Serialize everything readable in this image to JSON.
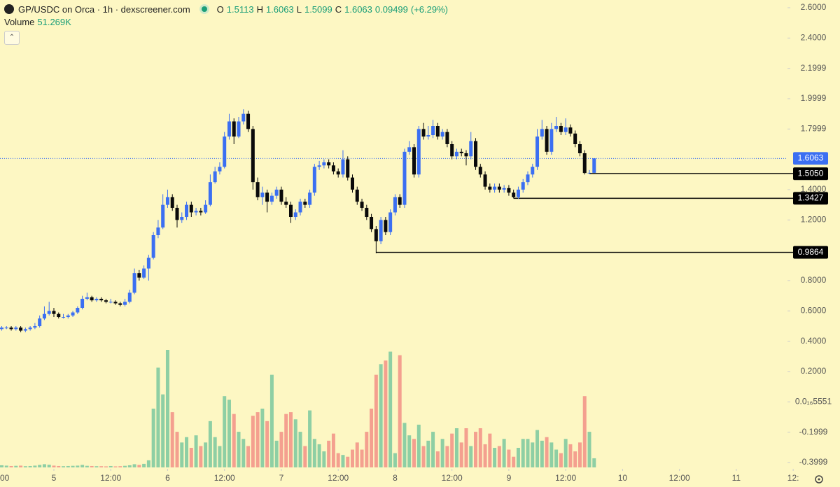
{
  "chart_data": {
    "type": "candlestick",
    "title": "GP/USDC on Orca · 1h · dexscreener.com",
    "ohlc_letters": [
      "O",
      "H",
      "L",
      "C"
    ],
    "change": 0.09499,
    "change_pct": 6.29,
    "change_pct_label": "(+6.29%)",
    "volume_label": "Volume",
    "volume_value_label": "51.269K",
    "up_color": "#3b6ff2",
    "down_color": "#0a0a0a",
    "volume_up_color": "#8ecfa4",
    "volume_down_color": "#f4a08f",
    "ylim": [
      -0.4414,
      2.6508
    ],
    "yticks": [
      {
        "value": 2.6,
        "label": "2.6000"
      },
      {
        "value": 2.4,
        "label": "2.4000"
      },
      2.1999,
      1.9999,
      1.7999,
      {
        "value": 1.4,
        "label": "1.4000"
      },
      {
        "value": 1.2,
        "label": "1.2000"
      },
      {
        "value": 0.8,
        "label": "0.8000"
      },
      {
        "value": 0.6,
        "label": "0.6000"
      },
      {
        "value": 0.4,
        "label": "0.4000"
      },
      {
        "value": 0.2,
        "label": "0.2000"
      },
      {
        "value": 5.551e-17,
        "label": "0.0₁₆5551"
      },
      -0.1999,
      -0.3999
    ],
    "xlim": [
      -0.37,
      165.8
    ],
    "xticks": [
      {
        "value": -1,
        "label": "00"
      },
      {
        "value": 11,
        "label": "5"
      },
      {
        "value": 23,
        "label": "12:00"
      },
      {
        "value": 35,
        "label": "6"
      },
      {
        "value": 47,
        "label": "12:00"
      },
      {
        "value": 59,
        "label": "7"
      },
      {
        "value": 71,
        "label": "12:00"
      },
      {
        "value": 83,
        "label": "8"
      },
      {
        "value": 95,
        "label": "12:00"
      },
      {
        "value": 107,
        "label": "9"
      },
      {
        "value": 119,
        "label": "12:00"
      },
      {
        "value": 131,
        "label": "10"
      },
      {
        "value": 143,
        "label": "12:00"
      },
      {
        "value": 155,
        "label": "11"
      },
      {
        "value": 167,
        "label": "12:"
      }
    ],
    "levels": [
      {
        "value": 1.505,
        "label": "1.5050"
      },
      {
        "value": 1.3427,
        "label": "1.3427"
      },
      {
        "value": 0.9864,
        "label": "0.9864"
      }
    ],
    "candles": [
      [
        0.48,
        0.5,
        0.47,
        0.49
      ],
      [
        0.49,
        0.5,
        0.48,
        0.49
      ],
      [
        0.49,
        0.5,
        0.47,
        0.48
      ],
      [
        0.48,
        0.5,
        0.47,
        0.49
      ],
      [
        0.49,
        0.5,
        0.46,
        0.47
      ],
      [
        0.47,
        0.49,
        0.46,
        0.48
      ],
      [
        0.48,
        0.5,
        0.47,
        0.49
      ],
      [
        0.49,
        0.52,
        0.48,
        0.5
      ],
      [
        0.5,
        0.57,
        0.49,
        0.55
      ],
      [
        0.55,
        0.63,
        0.54,
        0.58
      ],
      [
        0.58,
        0.66,
        0.57,
        0.6
      ],
      [
        0.6,
        0.62,
        0.56,
        0.58
      ],
      [
        0.58,
        0.59,
        0.55,
        0.56
      ],
      [
        0.56,
        0.58,
        0.55,
        0.56
      ],
      [
        0.56,
        0.58,
        0.55,
        0.57
      ],
      [
        0.57,
        0.6,
        0.56,
        0.59
      ],
      [
        0.59,
        0.63,
        0.58,
        0.62
      ],
      [
        0.62,
        0.7,
        0.61,
        0.68
      ],
      [
        0.68,
        0.72,
        0.67,
        0.69
      ],
      [
        0.69,
        0.7,
        0.66,
        0.67
      ],
      [
        0.67,
        0.69,
        0.66,
        0.68
      ],
      [
        0.68,
        0.69,
        0.66,
        0.67
      ],
      [
        0.67,
        0.68,
        0.65,
        0.66
      ],
      [
        0.66,
        0.68,
        0.65,
        0.66
      ],
      [
        0.66,
        0.67,
        0.64,
        0.65
      ],
      [
        0.65,
        0.66,
        0.63,
        0.64
      ],
      [
        0.64,
        0.68,
        0.63,
        0.66
      ],
      [
        0.66,
        0.74,
        0.65,
        0.72
      ],
      [
        0.72,
        0.88,
        0.71,
        0.85
      ],
      [
        0.85,
        0.87,
        0.8,
        0.82
      ],
      [
        0.82,
        0.9,
        0.81,
        0.88
      ],
      [
        0.88,
        0.97,
        0.8,
        0.95
      ],
      [
        0.95,
        1.12,
        0.94,
        1.1
      ],
      [
        1.1,
        1.2,
        1.08,
        1.15
      ],
      [
        1.15,
        1.37,
        1.14,
        1.3
      ],
      [
        1.3,
        1.4,
        1.28,
        1.35
      ],
      [
        1.35,
        1.37,
        1.26,
        1.28
      ],
      [
        1.28,
        1.3,
        1.15,
        1.2
      ],
      [
        1.2,
        1.25,
        1.18,
        1.22
      ],
      [
        1.22,
        1.32,
        1.2,
        1.3
      ],
      [
        1.3,
        1.32,
        1.22,
        1.25
      ],
      [
        1.25,
        1.28,
        1.23,
        1.26
      ],
      [
        1.26,
        1.28,
        1.23,
        1.25
      ],
      [
        1.25,
        1.33,
        1.24,
        1.3
      ],
      [
        1.3,
        1.5,
        1.29,
        1.45
      ],
      [
        1.45,
        1.55,
        1.44,
        1.52
      ],
      [
        1.52,
        1.58,
        1.5,
        1.55
      ],
      [
        1.55,
        1.78,
        1.54,
        1.75
      ],
      [
        1.75,
        1.9,
        1.73,
        1.85
      ],
      [
        1.85,
        1.87,
        1.7,
        1.75
      ],
      [
        1.75,
        1.88,
        1.74,
        1.85
      ],
      [
        1.85,
        1.93,
        1.83,
        1.9
      ],
      [
        1.9,
        1.92,
        1.78,
        1.8
      ],
      [
        1.8,
        1.82,
        1.4,
        1.45
      ],
      [
        1.45,
        1.48,
        1.33,
        1.35
      ],
      [
        1.35,
        1.42,
        1.3,
        1.38
      ],
      [
        1.38,
        1.4,
        1.25,
        1.32
      ],
      [
        1.32,
        1.38,
        1.3,
        1.36
      ],
      [
        1.36,
        1.42,
        1.34,
        1.4
      ],
      [
        1.4,
        1.42,
        1.3,
        1.32
      ],
      [
        1.32,
        1.35,
        1.28,
        1.3
      ],
      [
        1.3,
        1.32,
        1.18,
        1.22
      ],
      [
        1.22,
        1.27,
        1.2,
        1.25
      ],
      [
        1.25,
        1.34,
        1.23,
        1.32
      ],
      [
        1.32,
        1.34,
        1.28,
        1.3
      ],
      [
        1.3,
        1.4,
        1.28,
        1.38
      ],
      [
        1.38,
        1.57,
        1.36,
        1.55
      ],
      [
        1.55,
        1.59,
        1.53,
        1.56
      ],
      [
        1.56,
        1.6,
        1.54,
        1.58
      ],
      [
        1.58,
        1.6,
        1.54,
        1.56
      ],
      [
        1.56,
        1.58,
        1.5,
        1.52
      ],
      [
        1.52,
        1.54,
        1.48,
        1.5
      ],
      [
        1.5,
        1.66,
        1.48,
        1.6
      ],
      [
        1.6,
        1.62,
        1.46,
        1.48
      ],
      [
        1.48,
        1.5,
        1.38,
        1.4
      ],
      [
        1.4,
        1.42,
        1.3,
        1.32
      ],
      [
        1.32,
        1.34,
        1.26,
        1.28
      ],
      [
        1.28,
        1.3,
        1.2,
        1.22
      ],
      [
        1.22,
        1.24,
        1.12,
        1.14
      ],
      [
        1.14,
        1.16,
        0.98,
        1.06
      ],
      [
        1.06,
        1.22,
        1.04,
        1.2
      ],
      [
        1.2,
        1.22,
        1.1,
        1.12
      ],
      [
        1.12,
        1.27,
        1.1,
        1.25
      ],
      [
        1.25,
        1.37,
        1.23,
        1.35
      ],
      [
        1.35,
        1.37,
        1.28,
        1.3
      ],
      [
        1.3,
        1.67,
        1.28,
        1.65
      ],
      [
        1.65,
        1.72,
        1.63,
        1.68
      ],
      [
        1.68,
        1.7,
        1.48,
        1.5
      ],
      [
        1.5,
        1.82,
        1.48,
        1.8
      ],
      [
        1.8,
        1.84,
        1.73,
        1.75
      ],
      [
        1.75,
        1.82,
        1.73,
        1.76
      ],
      [
        1.76,
        1.86,
        1.74,
        1.82
      ],
      [
        1.82,
        1.84,
        1.73,
        1.75
      ],
      [
        1.75,
        1.8,
        1.73,
        1.78
      ],
      [
        1.78,
        1.8,
        1.68,
        1.7
      ],
      [
        1.7,
        1.72,
        1.6,
        1.62
      ],
      [
        1.62,
        1.67,
        1.6,
        1.65
      ],
      [
        1.65,
        1.67,
        1.62,
        1.64
      ],
      [
        1.64,
        1.66,
        1.56,
        1.62
      ],
      [
        1.62,
        1.78,
        1.6,
        1.72
      ],
      [
        1.72,
        1.74,
        1.53,
        1.55
      ],
      [
        1.55,
        1.57,
        1.48,
        1.5
      ],
      [
        1.5,
        1.52,
        1.4,
        1.42
      ],
      [
        1.42,
        1.44,
        1.38,
        1.4
      ],
      [
        1.4,
        1.44,
        1.38,
        1.42
      ],
      [
        1.42,
        1.44,
        1.38,
        1.4
      ],
      [
        1.4,
        1.43,
        1.38,
        1.41
      ],
      [
        1.41,
        1.43,
        1.36,
        1.38
      ],
      [
        1.38,
        1.4,
        1.3427,
        1.35
      ],
      [
        1.35,
        1.42,
        1.34,
        1.4
      ],
      [
        1.4,
        1.47,
        1.38,
        1.45
      ],
      [
        1.45,
        1.52,
        1.43,
        1.5
      ],
      [
        1.5,
        1.57,
        1.48,
        1.55
      ],
      [
        1.55,
        1.8,
        1.53,
        1.75
      ],
      [
        1.75,
        1.86,
        1.73,
        1.8
      ],
      [
        1.8,
        1.82,
        1.63,
        1.65
      ],
      [
        1.65,
        1.84,
        1.63,
        1.8
      ],
      [
        1.8,
        1.88,
        1.78,
        1.82
      ],
      [
        1.82,
        1.84,
        1.76,
        1.78
      ],
      [
        1.78,
        1.87,
        1.76,
        1.81
      ],
      [
        1.81,
        1.83,
        1.75,
        1.77
      ],
      [
        1.77,
        1.79,
        1.68,
        1.7
      ],
      [
        1.7,
        1.72,
        1.62,
        1.64
      ],
      [
        1.64,
        1.66,
        1.5,
        1.51
      ],
      [
        1.51,
        1.53,
        1.505,
        1.5113
      ],
      [
        1.5113,
        1.6063,
        1.5099,
        1.6063
      ]
    ],
    "volumes": [
      12,
      10,
      8,
      9,
      10,
      7,
      8,
      10,
      14,
      18,
      15,
      10,
      8,
      7,
      8,
      9,
      10,
      14,
      9,
      8,
      7,
      7,
      6,
      8,
      6,
      7,
      9,
      12,
      18,
      14,
      20,
      40,
      330,
      560,
      410,
      660,
      310,
      200,
      140,
      170,
      110,
      180,
      120,
      140,
      260,
      170,
      120,
      400,
      380,
      300,
      200,
      160,
      120,
      290,
      310,
      330,
      260,
      520,
      150,
      200,
      300,
      310,
      270,
      200,
      120,
      320,
      160,
      130,
      90,
      150,
      190,
      80,
      70,
      60,
      100,
      140,
      100,
      200,
      330,
      520,
      580,
      600,
      650,
      80,
      630,
      250,
      180,
      160,
      240,
      120,
      150,
      200,
      90,
      160,
      120,
      190,
      220,
      140,
      220,
      120,
      200,
      220,
      130,
      190,
      110,
      120,
      160,
      100,
      60,
      110,
      160,
      160,
      140,
      210,
      150,
      170,
      140,
      100,
      80,
      160,
      130,
      90,
      140,
      400,
      200,
      51.269
    ]
  }
}
